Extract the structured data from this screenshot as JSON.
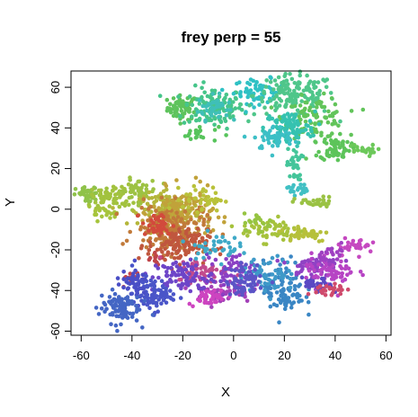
{
  "chart_data": {
    "type": "scatter",
    "title": "frey perp = 55",
    "xlabel": "X",
    "ylabel": "Y",
    "xlim": [
      -64,
      62
    ],
    "ylim": [
      -62,
      68
    ],
    "xticks": [
      -60,
      -40,
      -20,
      0,
      20,
      40,
      60
    ],
    "yticks": [
      -60,
      -40,
      -20,
      0,
      20,
      40,
      60
    ],
    "grid": false,
    "legend": "none",
    "point_style": "filled circles, colour encodes sequence index (rainbow palette)",
    "clusters": [
      {
        "color": "#5ec35c",
        "center": [
          -20,
          50
        ],
        "spread": [
          3,
          3
        ],
        "n": 60
      },
      {
        "color": "#46c58a",
        "center": [
          -8,
          50
        ],
        "spread": [
          6,
          5
        ],
        "n": 120
      },
      {
        "color": "#3fbfb8",
        "center": [
          -8,
          50
        ],
        "spread": [
          3,
          3
        ],
        "n": 40
      },
      {
        "color": "#57c45c",
        "center": [
          -14,
          37
        ],
        "spread": [
          4,
          2
        ],
        "n": 20
      },
      {
        "color": "#2fc1c4",
        "center": [
          10,
          58
        ],
        "spread": [
          5,
          3
        ],
        "n": 60
      },
      {
        "color": "#4fc68a",
        "center": [
          24,
          56
        ],
        "spread": [
          8,
          5
        ],
        "n": 150
      },
      {
        "color": "#62c45a",
        "center": [
          32,
          45
        ],
        "spread": [
          6,
          5
        ],
        "n": 100
      },
      {
        "color": "#35c2b0",
        "center": [
          22,
          40
        ],
        "spread": [
          5,
          4
        ],
        "n": 90
      },
      {
        "color": "#3cbfc6",
        "center": [
          16,
          35
        ],
        "spread": [
          4,
          3
        ],
        "n": 50
      },
      {
        "color": "#5dc45a",
        "center": [
          40,
          30
        ],
        "spread": [
          3,
          3
        ],
        "n": 70
      },
      {
        "color": "#6cc85a",
        "center": [
          50,
          29
        ],
        "spread": [
          3,
          1.5
        ],
        "n": 20
      },
      {
        "color": "#44c59a",
        "center": [
          24,
          22
        ],
        "spread": [
          1.5,
          4
        ],
        "n": 30
      },
      {
        "color": "#41c0c4",
        "center": [
          25,
          10
        ],
        "spread": [
          2,
          1.5
        ],
        "n": 20
      },
      {
        "color": "#9ac244",
        "center": [
          32,
          3
        ],
        "spread": [
          4,
          1.5
        ],
        "n": 30
      },
      {
        "color": "#8fc24a",
        "center": [
          -57,
          7
        ],
        "spread": [
          2.5,
          2
        ],
        "n": 40
      },
      {
        "color": "#a2c23e",
        "center": [
          -48,
          6
        ],
        "spread": [
          4,
          3
        ],
        "n": 60
      },
      {
        "color": "#9dc242",
        "center": [
          -38,
          9
        ],
        "spread": [
          4,
          3
        ],
        "n": 50
      },
      {
        "color": "#a6c43c",
        "center": [
          -52,
          -2
        ],
        "spread": [
          3,
          1.5
        ],
        "n": 20
      },
      {
        "color": "#b4b63a",
        "center": [
          -25,
          0
        ],
        "spread": [
          6,
          4
        ],
        "n": 120
      },
      {
        "color": "#c1a23a",
        "center": [
          -20,
          -2
        ],
        "spread": [
          6,
          6
        ],
        "n": 150
      },
      {
        "color": "#c17a3a",
        "center": [
          -25,
          -10
        ],
        "spread": [
          7,
          6
        ],
        "n": 160
      },
      {
        "color": "#c0573e",
        "center": [
          -22,
          -18
        ],
        "spread": [
          6,
          4
        ],
        "n": 110
      },
      {
        "color": "#d24a3c",
        "center": [
          -30,
          -8
        ],
        "spread": [
          3,
          3
        ],
        "n": 40
      },
      {
        "color": "#b9c23a",
        "center": [
          -12,
          5
        ],
        "spread": [
          4,
          3
        ],
        "n": 40
      },
      {
        "color": "#a6c23c",
        "center": [
          15,
          -10
        ],
        "spread": [
          6,
          3
        ],
        "n": 60
      },
      {
        "color": "#b6c03a",
        "center": [
          28,
          -12
        ],
        "spread": [
          5,
          2
        ],
        "n": 40
      },
      {
        "color": "#96c442",
        "center": [
          10,
          -6
        ],
        "spread": [
          3,
          2
        ],
        "n": 20
      },
      {
        "color": "#c4464c",
        "center": [
          -40,
          -34
        ],
        "spread": [
          2,
          2
        ],
        "n": 15
      },
      {
        "color": "#bf4448",
        "center": [
          -30,
          -25
        ],
        "spread": [
          2,
          2
        ],
        "n": 12
      },
      {
        "color": "#c24a8c",
        "center": [
          -12,
          -30
        ],
        "spread": [
          5,
          3
        ],
        "n": 60
      },
      {
        "color": "#a341b8",
        "center": [
          -5,
          -40
        ],
        "spread": [
          6,
          3
        ],
        "n": 60
      },
      {
        "color": "#cd44c0",
        "center": [
          -10,
          -43
        ],
        "spread": [
          4,
          2
        ],
        "n": 40
      },
      {
        "color": "#8b40c4",
        "center": [
          0,
          -30
        ],
        "spread": [
          4,
          4
        ],
        "n": 50
      },
      {
        "color": "#6d45c8",
        "center": [
          -20,
          -33
        ],
        "spread": [
          6,
          4
        ],
        "n": 80
      },
      {
        "color": "#4a55c8",
        "center": [
          -32,
          -42
        ],
        "spread": [
          4,
          4
        ],
        "n": 90
      },
      {
        "color": "#4466c4",
        "center": [
          -45,
          -48
        ],
        "spread": [
          4,
          4
        ],
        "n": 90
      },
      {
        "color": "#4a4ec6",
        "center": [
          -40,
          -36
        ],
        "spread": [
          3,
          3
        ],
        "n": 40
      },
      {
        "color": "#3a86c4",
        "center": [
          20,
          -40
        ],
        "spread": [
          4,
          7
        ],
        "n": 90
      },
      {
        "color": "#3e99c8",
        "center": [
          14,
          -32
        ],
        "spread": [
          5,
          4
        ],
        "n": 70
      },
      {
        "color": "#5b54c6",
        "center": [
          5,
          -35
        ],
        "spread": [
          4,
          4
        ],
        "n": 60
      },
      {
        "color": "#3fa9c7",
        "center": [
          -8,
          -18
        ],
        "spread": [
          5,
          3
        ],
        "n": 40
      },
      {
        "color": "#9042c4",
        "center": [
          32,
          -28
        ],
        "spread": [
          5,
          3
        ],
        "n": 60
      },
      {
        "color": "#b744c4",
        "center": [
          38,
          -30
        ],
        "spread": [
          5,
          4
        ],
        "n": 70
      },
      {
        "color": "#5a48c4",
        "center": [
          33,
          -38
        ],
        "spread": [
          3,
          2
        ],
        "n": 30
      },
      {
        "color": "#cf4a6c",
        "center": [
          38,
          -40
        ],
        "spread": [
          3,
          2
        ],
        "n": 25
      },
      {
        "color": "#c548c0",
        "center": [
          48,
          -18
        ],
        "spread": [
          4,
          2
        ],
        "n": 35
      },
      {
        "color": "#9e40c2",
        "center": [
          40,
          -22
        ],
        "spread": [
          3,
          2
        ],
        "n": 20
      }
    ]
  }
}
